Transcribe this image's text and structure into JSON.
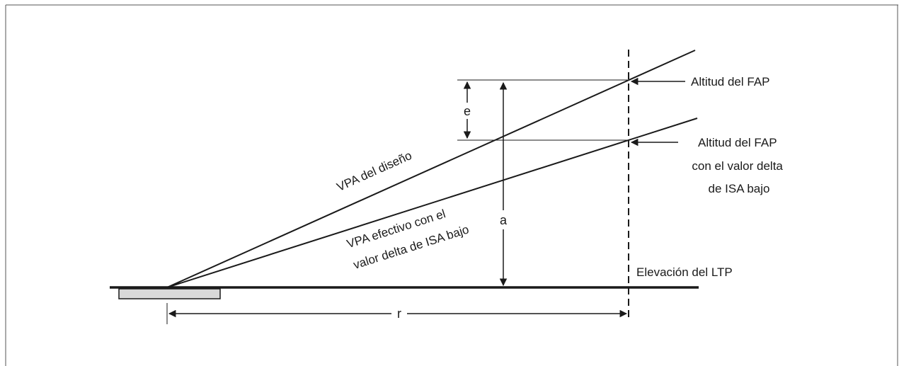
{
  "labels": {
    "fap_altitude": "Altitud del FAP",
    "fap_altitude_low_isa": [
      "Altitud del FAP",
      "con el valor delta",
      "de ISA bajo"
    ],
    "design_vpa": "VPA del diseño",
    "effective_vpa": [
      "VPA efectivo con el",
      "valor delta de ISA bajo"
    ],
    "ltp_elevation": "Elevación del LTP",
    "dim_e": "e",
    "dim_a": "a",
    "dim_r": "r"
  },
  "colors": {
    "line": "#1a1a1a",
    "runway_fill": "#d9d9d9",
    "frame": "#555555"
  }
}
